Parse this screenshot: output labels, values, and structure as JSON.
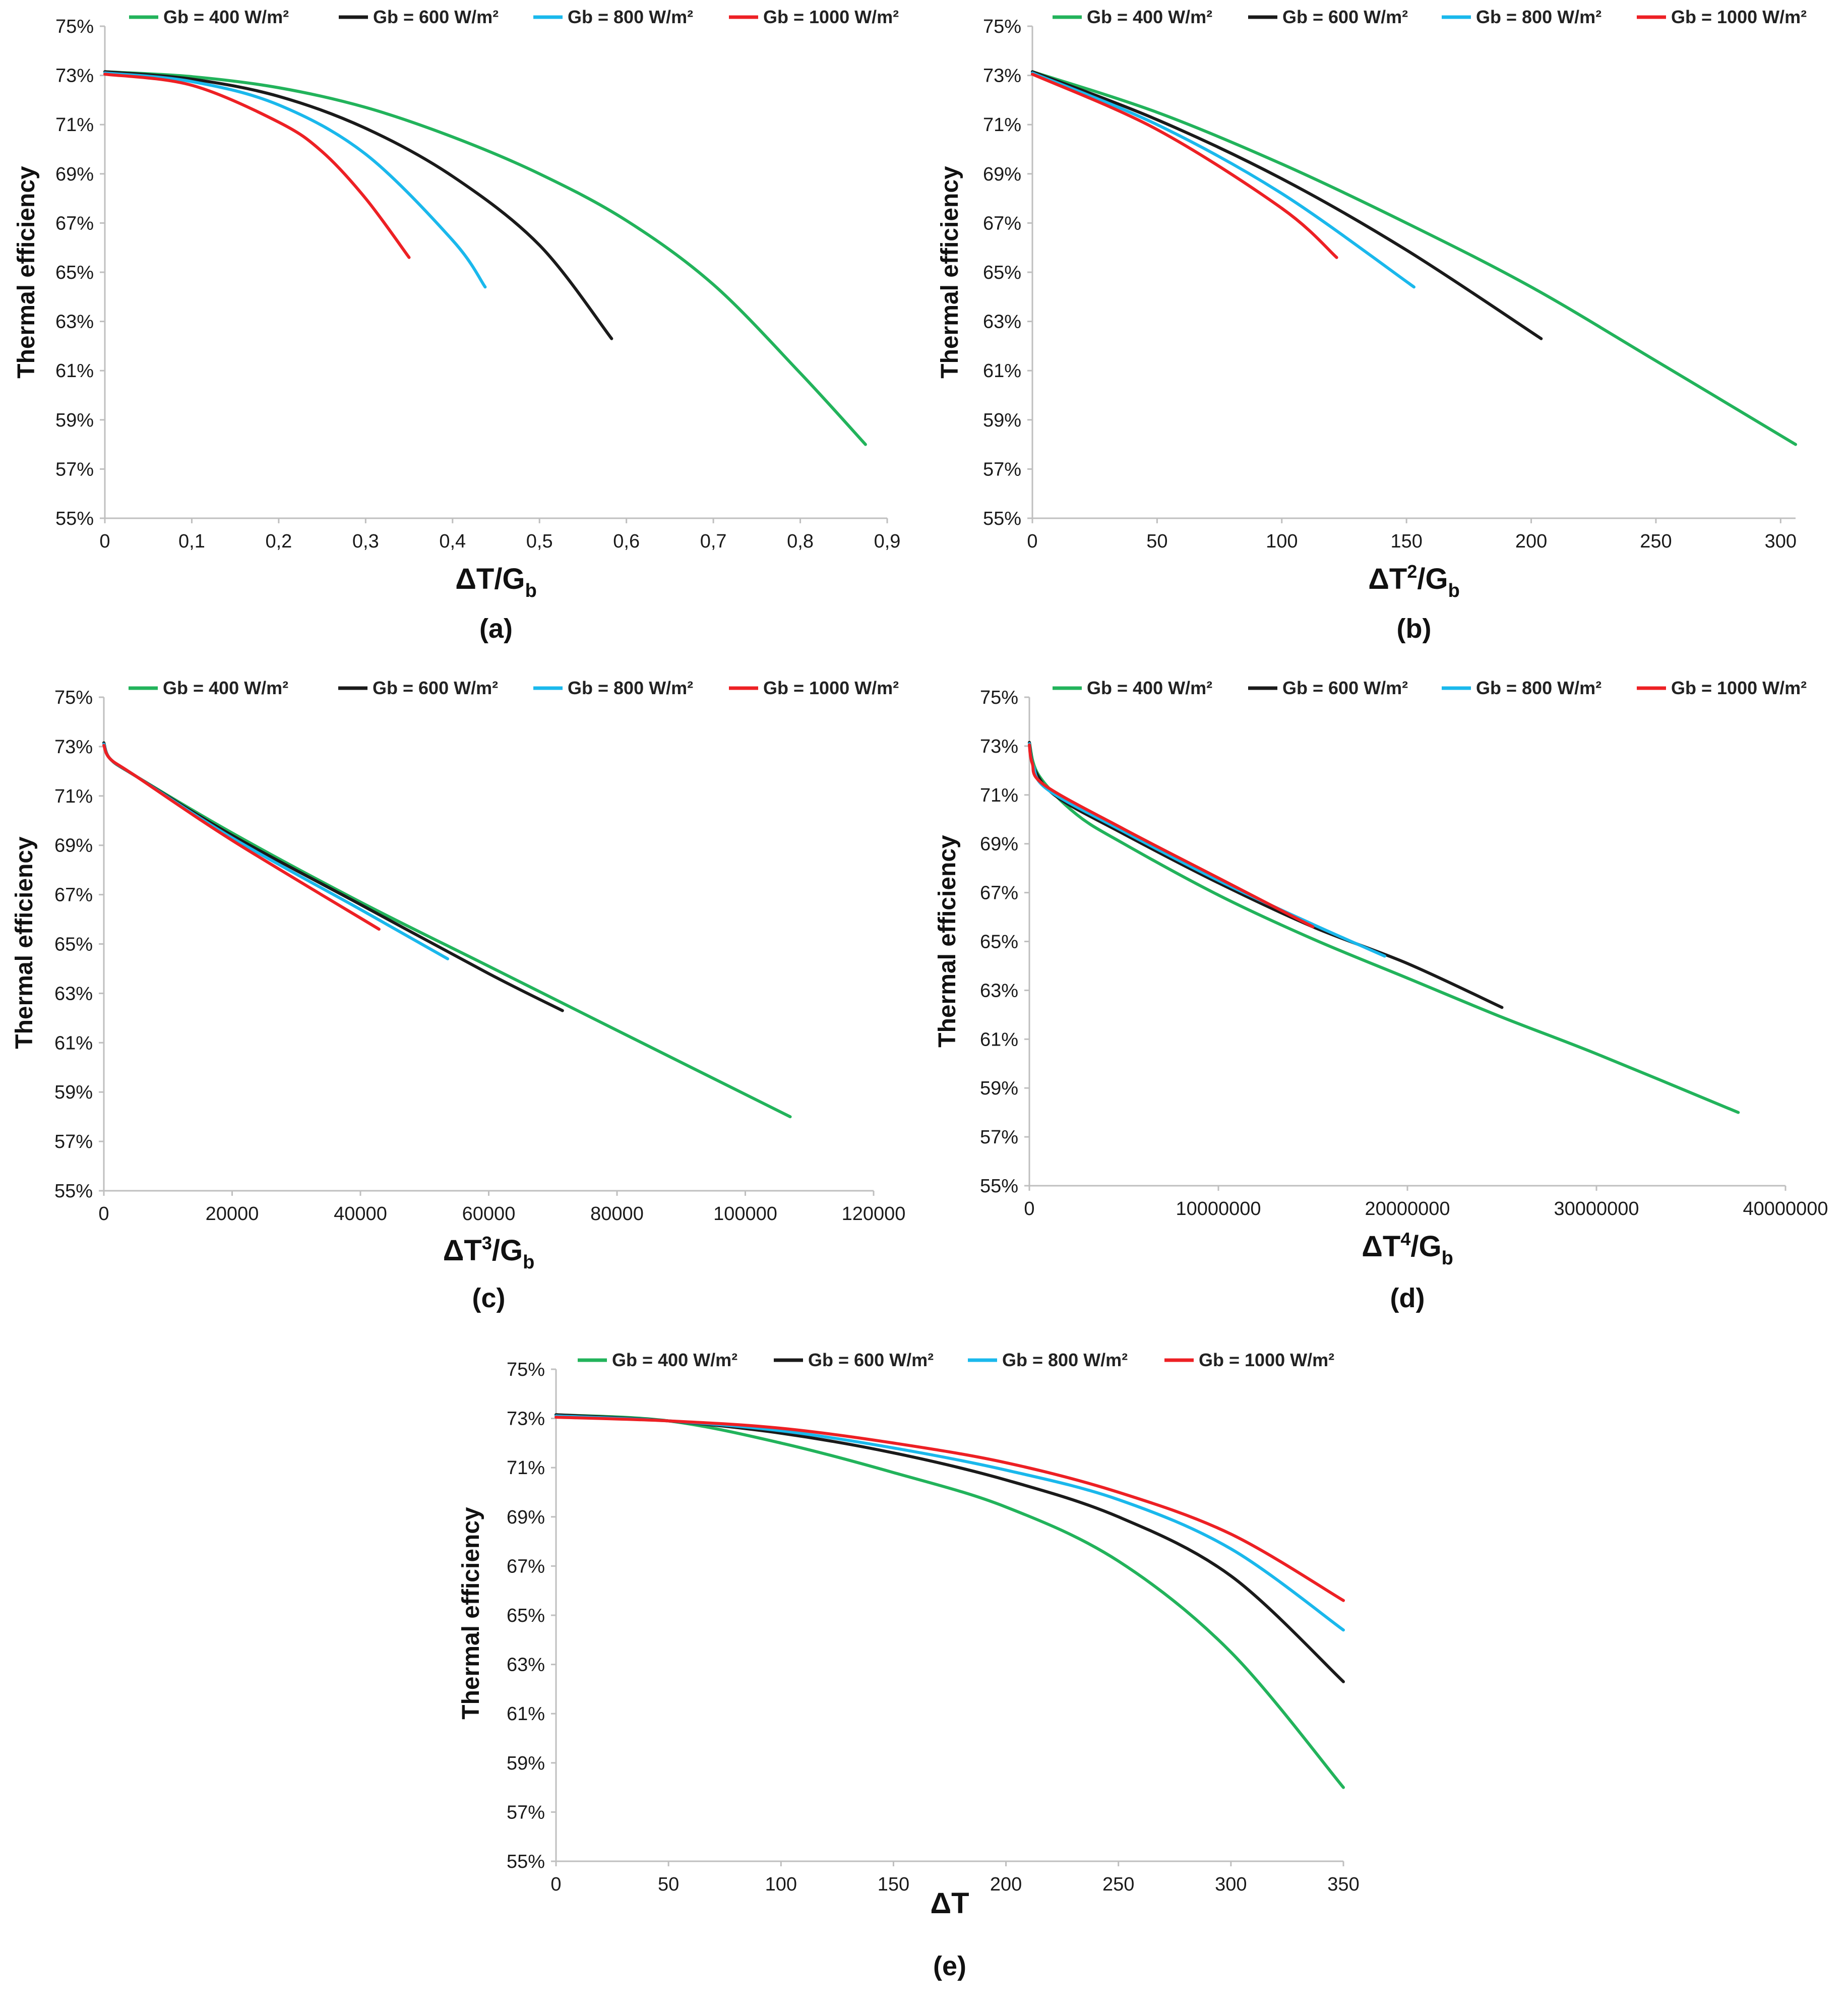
{
  "colors": {
    "green": "#22b35b",
    "black": "#1a1a1a",
    "blue": "#1ab8ec",
    "red": "#ed2024",
    "axis": "#bfbfbf"
  },
  "legend": [
    {
      "label": "Gb = 400 W/m²",
      "color": "#22b35b"
    },
    {
      "label": "Gb = 600 W/m²",
      "color": "#1a1a1a"
    },
    {
      "label": "Gb = 800 W/m²",
      "color": "#1ab8ec"
    },
    {
      "label": "Gb = 1000 W/m²",
      "color": "#ed2024"
    }
  ],
  "chart_data": [
    {
      "id": "a",
      "type": "line",
      "panel_label": "(a)",
      "xlabel_main": "ΔT/G",
      "xlabel_sup": "",
      "xlabel_sub": "b",
      "ylabel": "Thermal efficiency",
      "xlim": [
        0,
        0.9
      ],
      "xticks": [
        0,
        0.1,
        0.2,
        0.3,
        0.4,
        0.5,
        0.6,
        0.7,
        0.8,
        0.9
      ],
      "xtick_labels": [
        "0",
        "0,1",
        "0,2",
        "0,3",
        "0,4",
        "0,5",
        "0,6",
        "0,7",
        "0,8",
        "0,9"
      ],
      "ylim": [
        55,
        75
      ],
      "yticks": [
        55,
        57,
        59,
        61,
        63,
        65,
        67,
        69,
        71,
        73,
        75
      ],
      "ytick_labels": [
        "55%",
        "57%",
        "59%",
        "61%",
        "63%",
        "65%",
        "67%",
        "69%",
        "71%",
        "73%",
        "75%"
      ],
      "series": [
        {
          "name": "Gb = 400 W/m²",
          "color": "#22b35b",
          "x": [
            0,
            0.1,
            0.2,
            0.3,
            0.4,
            0.5,
            0.6,
            0.7,
            0.8,
            0.875
          ],
          "y": [
            73.15,
            72.95,
            72.5,
            71.7,
            70.5,
            69.0,
            67.1,
            64.5,
            60.9,
            58.0
          ]
        },
        {
          "name": "Gb = 600 W/m²",
          "color": "#1a1a1a",
          "x": [
            0,
            0.1,
            0.2,
            0.3,
            0.4,
            0.5,
            0.583
          ],
          "y": [
            73.15,
            72.85,
            72.15,
            70.85,
            68.9,
            66.1,
            62.3
          ]
        },
        {
          "name": "Gb = 800 W/m²",
          "color": "#1ab8ec",
          "x": [
            0,
            0.1,
            0.2,
            0.3,
            0.4,
            0.4375
          ],
          "y": [
            73.1,
            72.75,
            71.8,
            69.8,
            66.3,
            64.4
          ]
        },
        {
          "name": "Gb = 1000 W/m²",
          "color": "#ed2024",
          "x": [
            0,
            0.1,
            0.2,
            0.25,
            0.3,
            0.35
          ],
          "y": [
            73.05,
            72.6,
            71.1,
            69.9,
            68.0,
            65.6
          ]
        }
      ]
    },
    {
      "id": "b",
      "type": "line",
      "panel_label": "(b)",
      "xlabel_main": "ΔT",
      "xlabel_sup": "2",
      "xlabel_sub": "b",
      "ylabel": "Thermal efficiency",
      "xlim": [
        0,
        306
      ],
      "xticks": [
        0,
        50,
        100,
        150,
        200,
        250,
        300
      ],
      "xtick_labels": [
        "0",
        "50",
        "100",
        "150",
        "200",
        "250",
        "300"
      ],
      "ylim": [
        55,
        75
      ],
      "yticks": [
        55,
        57,
        59,
        61,
        63,
        65,
        67,
        69,
        71,
        73,
        75
      ],
      "ytick_labels": [
        "55%",
        "57%",
        "59%",
        "61%",
        "63%",
        "65%",
        "67%",
        "69%",
        "71%",
        "73%",
        "75%"
      ],
      "series": [
        {
          "name": "Gb = 400 W/m²",
          "color": "#22b35b",
          "x": [
            0,
            50,
            100,
            150,
            200,
            250,
            306
          ],
          "y": [
            73.15,
            71.5,
            69.4,
            67.0,
            64.4,
            61.4,
            58.0
          ]
        },
        {
          "name": "Gb = 600 W/m²",
          "color": "#1a1a1a",
          "x": [
            0,
            50,
            100,
            150,
            204
          ],
          "y": [
            73.15,
            71.2,
            68.8,
            65.9,
            62.3
          ]
        },
        {
          "name": "Gb = 800 W/m²",
          "color": "#1ab8ec",
          "x": [
            0,
            50,
            100,
            153
          ],
          "y": [
            73.1,
            71.0,
            68.2,
            64.4
          ]
        },
        {
          "name": "Gb = 1000 W/m²",
          "color": "#ed2024",
          "x": [
            0,
            50,
            100,
            122
          ],
          "y": [
            73.05,
            70.8,
            67.6,
            65.6
          ]
        }
      ]
    },
    {
      "id": "c",
      "type": "line",
      "panel_label": "(c)",
      "xlabel_main": "ΔT",
      "xlabel_sup": "3",
      "xlabel_sub": "b",
      "ylabel": "Thermal efficiency",
      "xlim": [
        0,
        120000
      ],
      "xticks": [
        0,
        20000,
        40000,
        60000,
        80000,
        100000,
        120000
      ],
      "xtick_labels": [
        "0",
        "20000",
        "40000",
        "60000",
        "80000",
        "100000",
        "120000"
      ],
      "ylim": [
        55,
        75
      ],
      "yticks": [
        55,
        57,
        59,
        61,
        63,
        65,
        67,
        69,
        71,
        73,
        75
      ],
      "ytick_labels": [
        "55%",
        "57%",
        "59%",
        "61%",
        "63%",
        "65%",
        "67%",
        "69%",
        "71%",
        "73%",
        "75%"
      ],
      "series": [
        {
          "name": "Gb = 400 W/m²",
          "color": "#22b35b",
          "x": [
            0,
            1000,
            5000,
            20000,
            40000,
            60000,
            80000,
            107000
          ],
          "y": [
            73.15,
            72.5,
            71.8,
            69.5,
            66.7,
            64.1,
            61.5,
            58.0
          ]
        },
        {
          "name": "Gb = 600 W/m²",
          "color": "#1a1a1a",
          "x": [
            0,
            1000,
            5000,
            20000,
            40000,
            60000,
            71500
          ],
          "y": [
            73.15,
            72.5,
            71.8,
            69.4,
            66.6,
            63.8,
            62.3
          ]
        },
        {
          "name": "Gb = 800 W/m²",
          "color": "#1ab8ec",
          "x": [
            0,
            1000,
            5000,
            20000,
            40000,
            53600
          ],
          "y": [
            73.1,
            72.5,
            71.8,
            69.3,
            66.4,
            64.4
          ]
        },
        {
          "name": "Gb = 1000 W/m²",
          "color": "#ed2024",
          "x": [
            0,
            1000,
            5000,
            20000,
            42900
          ],
          "y": [
            73.05,
            72.5,
            71.8,
            69.2,
            65.6
          ]
        }
      ]
    },
    {
      "id": "d",
      "type": "line",
      "panel_label": "(d)",
      "xlabel_main": "ΔT",
      "xlabel_sup": "4",
      "xlabel_sub": "b",
      "ylabel": "Thermal efficiency",
      "xlim": [
        0,
        40000000
      ],
      "xticks": [
        0,
        10000000,
        20000000,
        30000000,
        40000000
      ],
      "xtick_labels": [
        "0",
        "10000000",
        "20000000",
        "30000000",
        "40000000"
      ],
      "ylim": [
        55,
        75
      ],
      "yticks": [
        55,
        57,
        59,
        61,
        63,
        65,
        67,
        69,
        71,
        73,
        75
      ],
      "ytick_labels": [
        "55%",
        "57%",
        "59%",
        "61%",
        "63%",
        "65%",
        "67%",
        "69%",
        "71%",
        "73%",
        "75%"
      ],
      "series": [
        {
          "name": "Gb = 400 W/m²",
          "color": "#22b35b",
          "x": [
            0,
            500000,
            2500000,
            5000000,
            10000000,
            15000000,
            20000000,
            25000000,
            30000000,
            37500000
          ],
          "y": [
            73.15,
            71.8,
            70.2,
            69.0,
            66.9,
            65.1,
            63.5,
            61.9,
            60.4,
            58.0
          ]
        },
        {
          "name": "Gb = 600 W/m²",
          "color": "#1a1a1a",
          "x": [
            0,
            300000,
            1500000,
            5000000,
            10000000,
            15000000,
            20000000,
            25000000
          ],
          "y": [
            73.15,
            72.0,
            70.9,
            69.4,
            67.4,
            65.6,
            64.1,
            62.3
          ]
        },
        {
          "name": "Gb = 800 W/m²",
          "color": "#1ab8ec",
          "x": [
            0,
            200000,
            1000000,
            5000000,
            10000000,
            15000000,
            18800000
          ],
          "y": [
            73.1,
            72.2,
            71.2,
            69.5,
            67.5,
            65.7,
            64.4
          ]
        },
        {
          "name": "Gb = 1000 W/m²",
          "color": "#ed2024",
          "x": [
            0,
            150000,
            800000,
            5000000,
            10000000,
            15000000
          ],
          "y": [
            73.05,
            72.3,
            71.4,
            69.6,
            67.6,
            65.6
          ]
        }
      ]
    },
    {
      "id": "e",
      "type": "line",
      "panel_label": "(e)",
      "xlabel_main": "ΔT",
      "xlabel_sup": "",
      "xlabel_sub": "",
      "ylabel": "Thermal efficiency",
      "xlim": [
        0,
        350
      ],
      "xticks": [
        0,
        50,
        100,
        150,
        200,
        250,
        300,
        350
      ],
      "xtick_labels": [
        "0",
        "50",
        "100",
        "150",
        "200",
        "250",
        "300",
        "350"
      ],
      "ylim": [
        55,
        75
      ],
      "yticks": [
        55,
        57,
        59,
        61,
        63,
        65,
        67,
        69,
        71,
        73,
        75
      ],
      "ytick_labels": [
        "55%",
        "57%",
        "59%",
        "61%",
        "63%",
        "65%",
        "67%",
        "69%",
        "71%",
        "73%",
        "75%"
      ],
      "series": [
        {
          "name": "Gb = 400 W/m²",
          "color": "#22b35b",
          "x": [
            0,
            50,
            100,
            150,
            200,
            250,
            300,
            350
          ],
          "y": [
            73.15,
            72.9,
            72.0,
            70.8,
            69.4,
            67.2,
            63.5,
            58.0
          ]
        },
        {
          "name": "Gb = 600 W/m²",
          "color": "#1a1a1a",
          "x": [
            0,
            50,
            100,
            150,
            200,
            250,
            300,
            350
          ],
          "y": [
            73.15,
            72.9,
            72.4,
            71.6,
            70.5,
            69.0,
            66.6,
            62.3
          ]
        },
        {
          "name": "Gb = 800 W/m²",
          "color": "#1ab8ec",
          "x": [
            0,
            50,
            100,
            150,
            200,
            250,
            300,
            350
          ],
          "y": [
            73.1,
            72.9,
            72.5,
            71.8,
            70.9,
            69.7,
            67.7,
            64.4
          ]
        },
        {
          "name": "Gb = 1000 W/m²",
          "color": "#ed2024",
          "x": [
            0,
            50,
            100,
            150,
            200,
            250,
            300,
            350
          ],
          "y": [
            73.05,
            72.9,
            72.6,
            72.0,
            71.2,
            70.0,
            68.3,
            65.6
          ]
        }
      ]
    }
  ]
}
